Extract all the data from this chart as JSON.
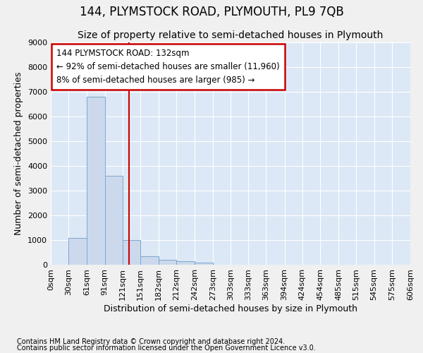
{
  "title": "144, PLYMSTOCK ROAD, PLYMOUTH, PL9 7QB",
  "subtitle": "Size of property relative to semi-detached houses in Plymouth",
  "xlabel": "Distribution of semi-detached houses by size in Plymouth",
  "ylabel": "Number of semi-detached properties",
  "footer_line1": "Contains HM Land Registry data © Crown copyright and database right 2024.",
  "footer_line2": "Contains public sector information licensed under the Open Government Licence v3.0.",
  "annotation_line1": "144 PLYMSTOCK ROAD: 132sqm",
  "annotation_line2": "← 92% of semi-detached houses are smaller (11,960)",
  "annotation_line3": "8% of semi-detached houses are larger (985) →",
  "property_size": 132,
  "bar_edges": [
    0,
    30,
    61,
    91,
    121,
    151,
    182,
    212,
    242,
    273,
    303,
    333,
    363,
    394,
    424,
    454,
    485,
    515,
    545,
    575,
    606
  ],
  "bar_heights": [
    0,
    1100,
    6800,
    3600,
    1000,
    350,
    200,
    150,
    100,
    0,
    0,
    0,
    0,
    0,
    0,
    0,
    0,
    0,
    0,
    0
  ],
  "bar_color": "#ccd9ec",
  "bar_edgecolor": "#7ba7d0",
  "vline_color": "#cc0000",
  "vline_x": 132,
  "annotation_box_edgecolor": "#cc0000",
  "ylim": [
    0,
    9000
  ],
  "xlim": [
    0,
    606
  ],
  "yticks": [
    0,
    1000,
    2000,
    3000,
    4000,
    5000,
    6000,
    7000,
    8000,
    9000
  ],
  "xtick_labels": [
    "0sqm",
    "30sqm",
    "61sqm",
    "91sqm",
    "121sqm",
    "151sqm",
    "182sqm",
    "212sqm",
    "242sqm",
    "273sqm",
    "303sqm",
    "333sqm",
    "363sqm",
    "394sqm",
    "424sqm",
    "454sqm",
    "485sqm",
    "515sqm",
    "545sqm",
    "575sqm",
    "606sqm"
  ],
  "background_color": "#dce8f5",
  "fig_background": "#f0f0f0",
  "grid_color": "#ffffff",
  "title_fontsize": 12,
  "subtitle_fontsize": 10,
  "axis_label_fontsize": 9,
  "tick_fontsize": 8,
  "footer_fontsize": 7,
  "annotation_fontsize": 8.5
}
